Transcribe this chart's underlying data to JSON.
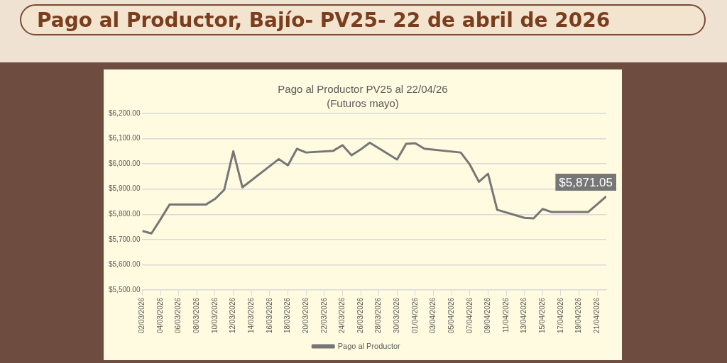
{
  "chart_data": {
    "type": "line",
    "title": "Pago al Productor, Bajío- PV25- 22 de abril de 2026",
    "subtitle": "Pago al Productor PV25 al 22/04/26",
    "annotations": [
      "(Futuros mayo)"
    ],
    "x": [
      "2026-03-02",
      "2026-03-03",
      "2026-03-04",
      "2026-03-05",
      "2026-03-06",
      "2026-03-09",
      "2026-03-10",
      "2026-03-11",
      "2026-03-12",
      "2026-03-13",
      "2026-03-16",
      "2026-03-17",
      "2026-03-18",
      "2026-03-19",
      "2026-03-20",
      "2026-03-23",
      "2026-03-24",
      "2026-03-25",
      "2026-03-26",
      "2026-03-27",
      "2026-03-30",
      "2026-03-31",
      "2026-04-01",
      "2026-04-02",
      "2026-04-06",
      "2026-04-07",
      "2026-04-08",
      "2026-04-09",
      "2026-04-10",
      "2026-04-13",
      "2026-04-14",
      "2026-04-15",
      "2026-04-16",
      "2026-04-17",
      "2026-04-20",
      "2026-04-21",
      "2026-04-22"
    ],
    "series": [
      {
        "name": "Pago al Productor",
        "color": "#767676",
        "values": [
          5734,
          5724,
          5780,
          5839,
          5839,
          5839,
          5861,
          5897,
          6050,
          5907,
          5991,
          6019,
          5994,
          6060,
          6045,
          6052,
          6074,
          6034,
          6057,
          6084,
          6017,
          6080,
          6082,
          6060,
          6045,
          5997,
          5929,
          5961,
          5818,
          5786,
          5784,
          5821,
          5809,
          5809,
          5809,
          5840,
          5871.05
        ],
        "value_labels": [
          null,
          null,
          null,
          null,
          null,
          null,
          null,
          null,
          null,
          null,
          null,
          null,
          null,
          null,
          null,
          null,
          null,
          null,
          null,
          null,
          null,
          null,
          null,
          null,
          null,
          null,
          null,
          null,
          null,
          null,
          null,
          null,
          null,
          null,
          null,
          null,
          "$5,871.05"
        ]
      }
    ],
    "xlim": [
      "2026-03-02",
      "2026-04-22"
    ],
    "xticks": [
      {
        "value": "2026-03-02",
        "label": "02/03/2026"
      },
      {
        "value": "2026-03-04",
        "label": "04/03/2026"
      },
      {
        "value": "2026-03-06",
        "label": "06/03/2026"
      },
      {
        "value": "2026-03-08",
        "label": "08/03/2026"
      },
      {
        "value": "2026-03-10",
        "label": "10/03/2026"
      },
      {
        "value": "2026-03-12",
        "label": "12/03/2026"
      },
      {
        "value": "2026-03-14",
        "label": "14/03/2026"
      },
      {
        "value": "2026-03-16",
        "label": "16/03/2026"
      },
      {
        "value": "2026-03-18",
        "label": "18/03/2026"
      },
      {
        "value": "2026-03-20",
        "label": "20/03/2026"
      },
      {
        "value": "2026-03-22",
        "label": "22/03/2026"
      },
      {
        "value": "2026-03-24",
        "label": "24/03/2026"
      },
      {
        "value": "2026-03-26",
        "label": "26/03/2026"
      },
      {
        "value": "2026-03-28",
        "label": "28/03/2026"
      },
      {
        "value": "2026-03-30",
        "label": "30/03/2026"
      },
      {
        "value": "2026-04-01",
        "label": "01/04/2026"
      },
      {
        "value": "2026-04-03",
        "label": "03/04/2026"
      },
      {
        "value": "2026-04-05",
        "label": "05/04/2026"
      },
      {
        "value": "2026-04-07",
        "label": "07/04/2026"
      },
      {
        "value": "2026-04-09",
        "label": "09/04/2026"
      },
      {
        "value": "2026-04-11",
        "label": "11/04/2026"
      },
      {
        "value": "2026-04-13",
        "label": "13/04/2026"
      },
      {
        "value": "2026-04-15",
        "label": "15/04/2026"
      },
      {
        "value": "2026-04-17",
        "label": "17/04/2026"
      },
      {
        "value": "2026-04-19",
        "label": "19/04/2026"
      },
      {
        "value": "2026-04-21",
        "label": "21/04/2026"
      }
    ],
    "ylim": [
      5500,
      6200
    ],
    "yticks": [
      {
        "value": 5500,
        "label": "$5,500.00"
      },
      {
        "value": 5600,
        "label": "$5,600.00"
      },
      {
        "value": 5700,
        "label": "$5,700.00"
      },
      {
        "value": 5800,
        "label": "$5,800.00"
      },
      {
        "value": 5900,
        "label": "$5,900.00"
      },
      {
        "value": 6000,
        "label": "$6,000.00"
      },
      {
        "value": 6100,
        "label": "$6,100.00"
      },
      {
        "value": 6200,
        "label": "$6,200.00"
      }
    ],
    "grid": "y",
    "legend": "bottom",
    "marker": "none",
    "line_style": "solid"
  }
}
